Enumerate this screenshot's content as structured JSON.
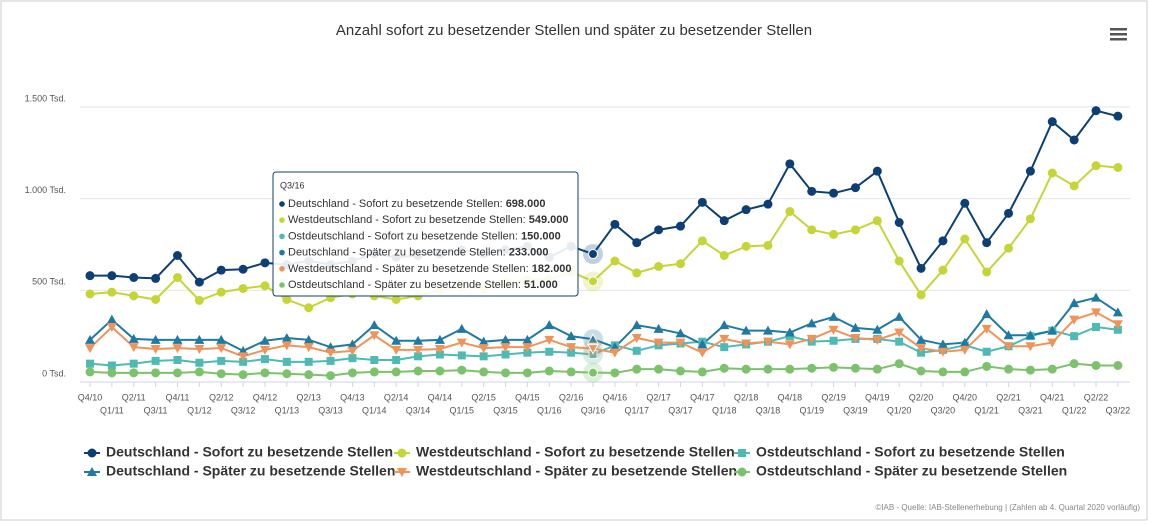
{
  "chart_data": {
    "type": "line",
    "title": "Anzahl sofort zu besetzender Stellen und später zu besetzender Stellen",
    "categories": [
      "Q4/10",
      "Q1/11",
      "Q2/11",
      "Q3/11",
      "Q4/11",
      "Q1/12",
      "Q2/12",
      "Q3/12",
      "Q4/12",
      "Q1/13",
      "Q2/13",
      "Q3/13",
      "Q4/13",
      "Q1/14",
      "Q2/14",
      "Q3/14",
      "Q4/14",
      "Q1/15",
      "Q2/15",
      "Q3/15",
      "Q4/15",
      "Q1/16",
      "Q2/16",
      "Q3/16",
      "Q4/16",
      "Q1/17",
      "Q2/17",
      "Q3/17",
      "Q4/17",
      "Q1/18",
      "Q2/18",
      "Q3/18",
      "Q4/18",
      "Q1/19",
      "Q2/19",
      "Q3/19",
      "Q4/19",
      "Q1/20",
      "Q2/20",
      "Q3/20",
      "Q4/20",
      "Q1/21",
      "Q2/21",
      "Q3/21",
      "Q4/21",
      "Q1/22",
      "Q2/22",
      "Q3/22"
    ],
    "series": [
      {
        "name": "Deutschland - Sofort zu besetzende Stellen",
        "color": "#0d3f75",
        "marker": "circle",
        "values": [
          580,
          580,
          570,
          565,
          690,
          545,
          610,
          615,
          650,
          640,
          660,
          640,
          660,
          700,
          680,
          690,
          700,
          720,
          700,
          720,
          740,
          680,
          740,
          698,
          860,
          760,
          830,
          850,
          980,
          880,
          940,
          970,
          1190,
          1040,
          1030,
          1060,
          1150,
          870,
          620,
          770,
          975,
          760,
          920,
          1150,
          1420,
          1320,
          1480,
          1450
        ]
      },
      {
        "name": "Westdeutschland - Sofort zu besetzende Stellen",
        "color": "#c5d536",
        "marker": "circle",
        "values": [
          480,
          490,
          470,
          450,
          570,
          445,
          490,
          510,
          525,
          450,
          405,
          460,
          480,
          470,
          450,
          470,
          500,
          520,
          510,
          540,
          560,
          560,
          600,
          549,
          660,
          595,
          630,
          645,
          770,
          690,
          740,
          745,
          930,
          830,
          805,
          830,
          880,
          660,
          475,
          610,
          780,
          600,
          730,
          890,
          1140,
          1070,
          1180,
          1170
        ]
      },
      {
        "name": "Ostdeutschland - Sofort zu besetzende Stellen",
        "color": "#4fbab4",
        "marker": "square",
        "values": [
          100,
          90,
          100,
          115,
          120,
          105,
          115,
          110,
          125,
          110,
          110,
          115,
          130,
          120,
          120,
          140,
          150,
          145,
          140,
          150,
          160,
          165,
          160,
          150,
          200,
          170,
          200,
          210,
          220,
          190,
          205,
          220,
          250,
          220,
          225,
          235,
          235,
          220,
          160,
          175,
          200,
          165,
          195,
          250,
          280,
          250,
          300,
          285
        ]
      },
      {
        "name": "Deutschland - Später zu besetzende Stellen",
        "color": "#1f7aa3",
        "marker": "triangle",
        "values": [
          230,
          340,
          235,
          230,
          230,
          230,
          230,
          170,
          225,
          240,
          230,
          190,
          205,
          310,
          225,
          225,
          230,
          290,
          220,
          230,
          230,
          310,
          250,
          233,
          190,
          310,
          290,
          265,
          205,
          310,
          280,
          280,
          270,
          320,
          355,
          295,
          285,
          355,
          230,
          205,
          215,
          370,
          255,
          255,
          280,
          430,
          460,
          380
        ]
      },
      {
        "name": "Westdeutschland - Später zu besetzende Stellen",
        "color": "#f0935a",
        "marker": "triangle-down",
        "values": [
          185,
          300,
          190,
          180,
          185,
          180,
          185,
          140,
          175,
          200,
          190,
          160,
          170,
          255,
          175,
          175,
          180,
          215,
          185,
          190,
          190,
          230,
          190,
          182,
          160,
          240,
          215,
          215,
          160,
          235,
          210,
          220,
          205,
          235,
          285,
          240,
          230,
          270,
          185,
          165,
          175,
          290,
          195,
          195,
          215,
          340,
          380,
          315
        ]
      },
      {
        "name": "Ostdeutschland - Später zu besetzende Stellen",
        "color": "#7cc26b",
        "marker": "circle",
        "values": [
          55,
          50,
          50,
          50,
          50,
          55,
          45,
          40,
          50,
          45,
          40,
          35,
          50,
          55,
          55,
          60,
          60,
          65,
          55,
          50,
          50,
          60,
          55,
          51,
          50,
          70,
          70,
          60,
          55,
          75,
          70,
          70,
          70,
          75,
          80,
          75,
          70,
          100,
          60,
          55,
          55,
          85,
          70,
          65,
          70,
          100,
          90,
          90
        ]
      }
    ],
    "ylim": [
      0,
      1500
    ],
    "yticks": [
      {
        "value": 0,
        "label": "0 Tsd."
      },
      {
        "value": 500,
        "label": "500 Tsd."
      },
      {
        "value": 1000,
        "label": "1.000 Tsd."
      },
      {
        "value": 1500,
        "label": "1.500 Tsd."
      }
    ],
    "grid": true,
    "legend": "bottom",
    "tooltip": {
      "category": "Q3/16",
      "items": [
        {
          "label": "Deutschland - Sofort zu besetzende Stellen: ",
          "value": "698.000"
        },
        {
          "label": "Westdeutschland - Sofort zu besetzende Stellen: ",
          "value": "549.000"
        },
        {
          "label": "Ostdeutschland - Sofort zu besetzende Stellen: ",
          "value": "150.000"
        },
        {
          "label": "Deutschland - Später zu besetzende Stellen: ",
          "value": "233.000"
        },
        {
          "label": "Westdeutschland - Später zu besetzende Stellen: ",
          "value": "182.000"
        },
        {
          "label": "Ostdeutschland - Später zu besetzende Stellen: ",
          "value": "51.000"
        }
      ]
    },
    "credits": "©IAB - Quelle: IAB-Stellenerhebung | (Zahlen ab 4. Quartal 2020 vorläufig)"
  }
}
